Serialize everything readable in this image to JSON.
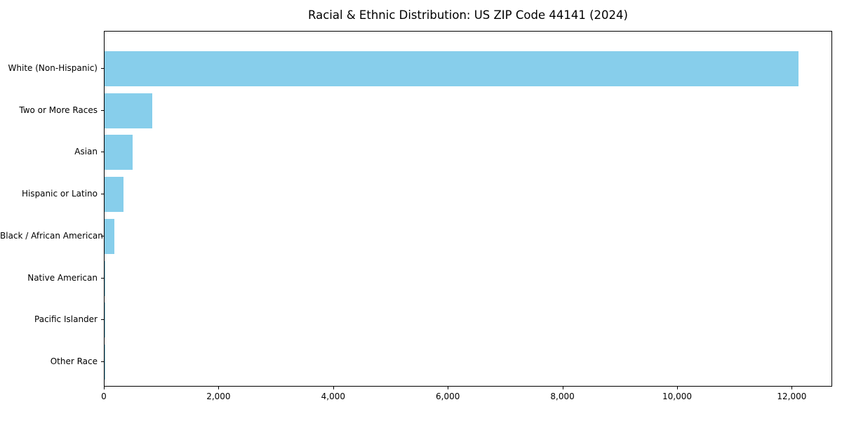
{
  "chart_data": {
    "type": "bar",
    "orientation": "horizontal",
    "title": "Racial & Ethnic Distribution: US ZIP Code 44141 (2024)",
    "xlabel": "",
    "ylabel": "",
    "categories": [
      "White (Non-Hispanic)",
      "Two or More Races",
      "Asian",
      "Hispanic or Latino",
      "Black / African American",
      "Native American",
      "Pacific Islander",
      "Other Race"
    ],
    "values": [
      12100,
      830,
      490,
      330,
      170,
      10,
      4,
      3
    ],
    "xlim": [
      0,
      12705
    ],
    "xticks": [
      0,
      2000,
      4000,
      6000,
      8000,
      10000,
      12000
    ],
    "xtick_labels": [
      "0",
      "2,000",
      "4,000",
      "6,000",
      "8,000",
      "10,000",
      "12,000"
    ],
    "bar_color": "#87CEEB",
    "grid": false,
    "legend": "none",
    "background": "#ffffff"
  }
}
